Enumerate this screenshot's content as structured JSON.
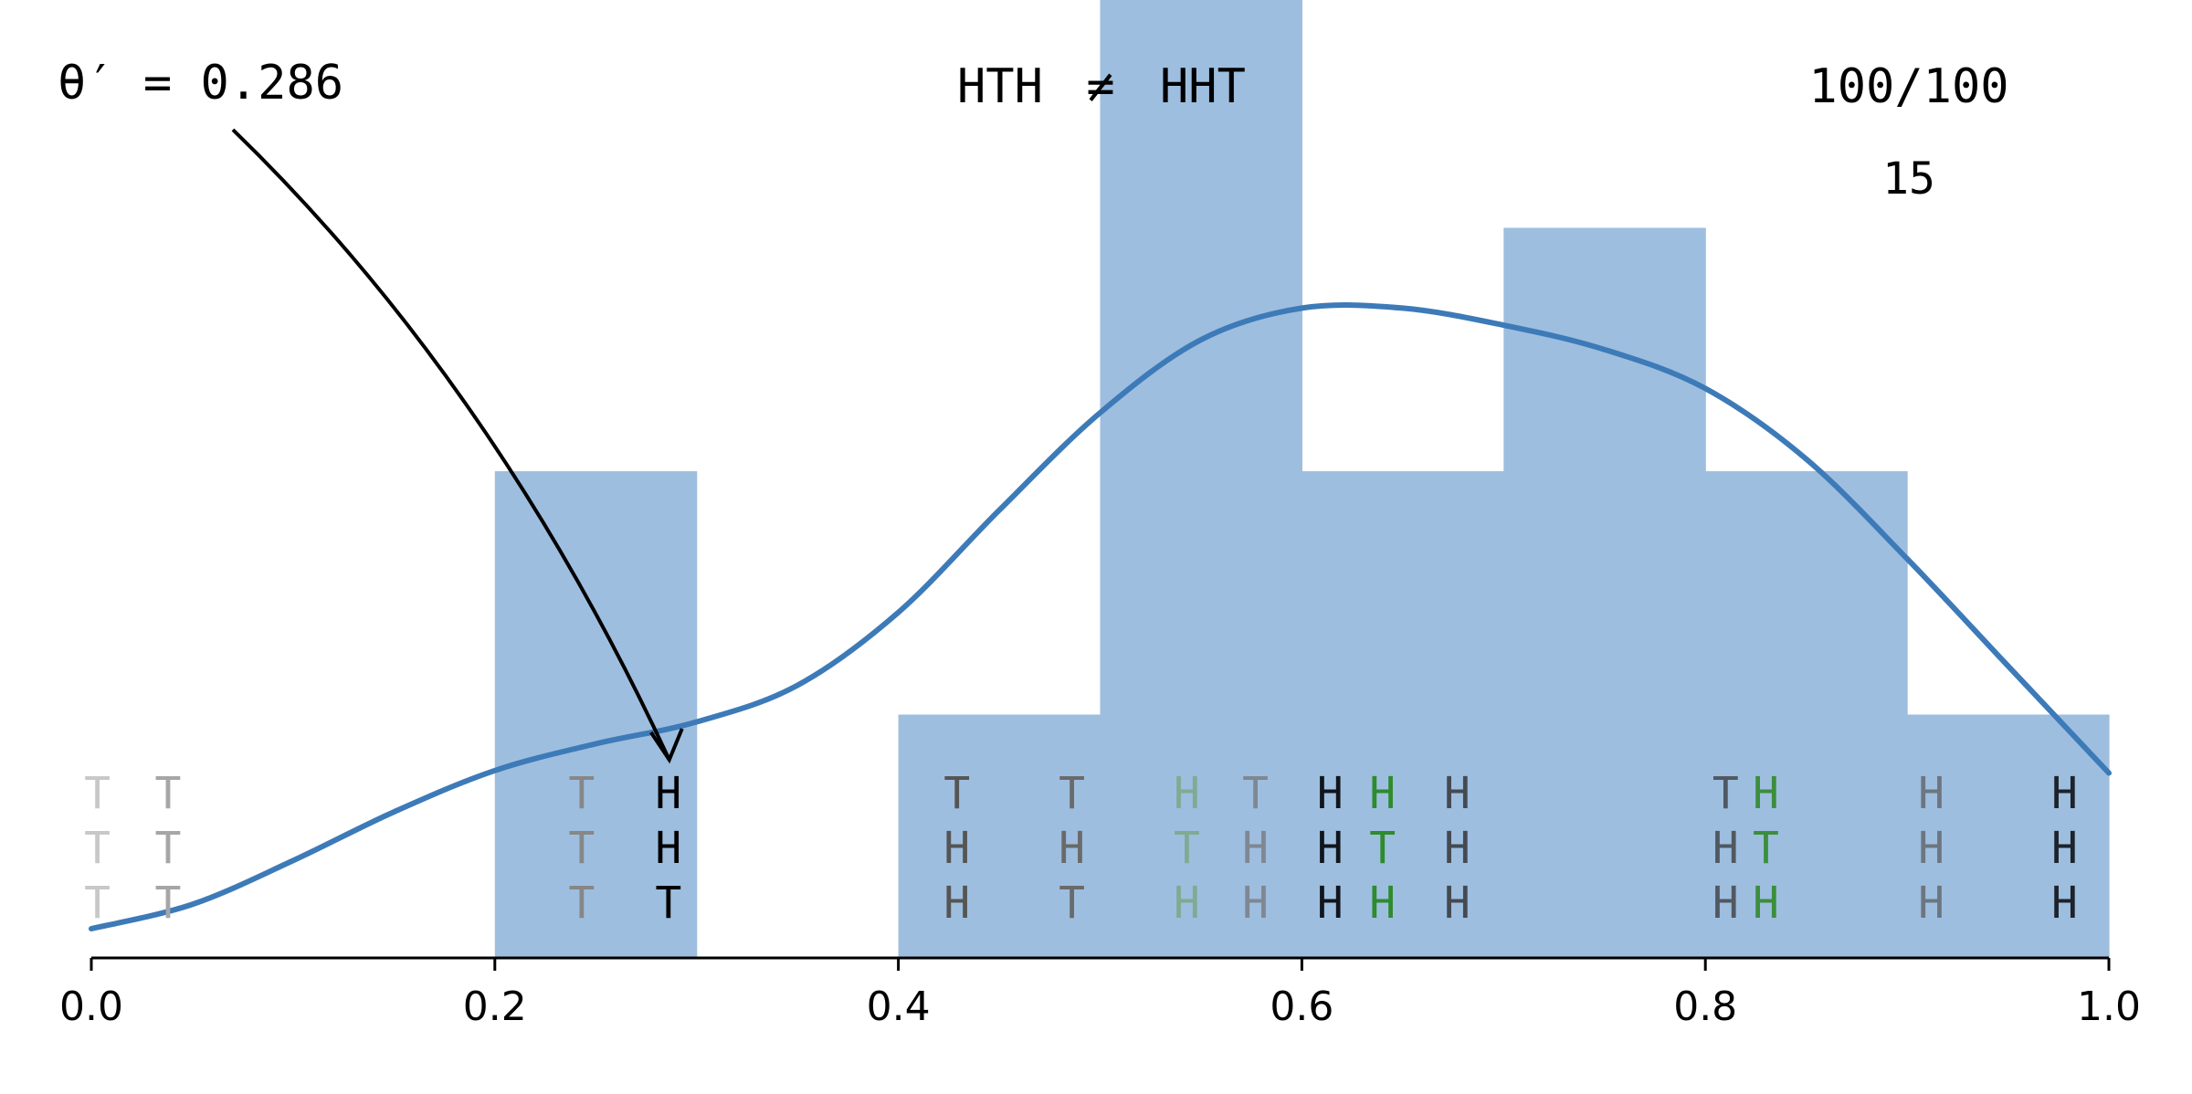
{
  "annotation": {
    "label": "θ′ = 0.286",
    "value": 0.286
  },
  "header": {
    "sequence_a": "HTH",
    "relation": "≠",
    "sequence_b": "HHT",
    "progress": "100/100",
    "count": "15"
  },
  "colors": {
    "bar": "#9ebedf",
    "curve": "#3d7ab8",
    "ink": "#000000",
    "highlight": "#2e8b2e"
  },
  "chart_data": {
    "type": "bar",
    "xlim": [
      0.0,
      1.0
    ],
    "x_ticks": [
      0.0,
      0.2,
      0.4,
      0.6,
      0.8,
      1.0
    ],
    "x_tick_labels": [
      "0.0",
      "0.2",
      "0.4",
      "0.6",
      "0.8",
      "1.0"
    ],
    "histogram": {
      "bin_edges": [
        0.0,
        0.1,
        0.2,
        0.3,
        0.4,
        0.5,
        0.6,
        0.7,
        0.8,
        0.9,
        1.0
      ],
      "counts": [
        0,
        0,
        2,
        0,
        1,
        4,
        2,
        3,
        2,
        1
      ]
    },
    "density_curve": {
      "x": [
        0.0,
        0.05,
        0.1,
        0.15,
        0.2,
        0.25,
        0.3,
        0.35,
        0.4,
        0.45,
        0.5,
        0.55,
        0.6,
        0.65,
        0.7,
        0.75,
        0.8,
        0.85,
        0.9,
        0.95,
        1.0
      ],
      "y": [
        0.12,
        0.22,
        0.4,
        0.6,
        0.77,
        0.88,
        0.97,
        1.12,
        1.42,
        1.84,
        2.24,
        2.54,
        2.67,
        2.67,
        2.6,
        2.5,
        2.34,
        2.05,
        1.64,
        1.2,
        0.76
      ]
    },
    "sequences": [
      {
        "theta": 0.003,
        "letters": [
          "T",
          "T",
          "T"
        ],
        "colors": [
          "#c8c8c8",
          "#c8c8c8",
          "#c8c8c8"
        ]
      },
      {
        "theta": 0.038,
        "letters": [
          "T",
          "T",
          "T"
        ],
        "colors": [
          "#a6a6a6",
          "#a6a6a6",
          "#a6a6a6"
        ]
      },
      {
        "theta": 0.243,
        "letters": [
          "T",
          "T",
          "T"
        ],
        "colors": [
          "#878787",
          "#878787",
          "#878787"
        ]
      },
      {
        "theta": 0.286,
        "letters": [
          "H",
          "H",
          "T"
        ],
        "colors": [
          "#000000",
          "#000000",
          "#000000"
        ]
      },
      {
        "theta": 0.429,
        "letters": [
          "T",
          "H",
          "H"
        ],
        "colors": [
          "#555555",
          "#555555",
          "#555555"
        ]
      },
      {
        "theta": 0.486,
        "letters": [
          "T",
          "H",
          "T"
        ],
        "colors": [
          "#6a6a6a",
          "#6a6a6a",
          "#6a6a6a"
        ]
      },
      {
        "theta": 0.543,
        "letters": [
          "H",
          "T",
          "H"
        ],
        "colors": [
          "#7fab93",
          "#7fab93",
          "#7fab93"
        ]
      },
      {
        "theta": 0.577,
        "letters": [
          "T",
          "H",
          "H"
        ],
        "colors": [
          "#7f8791",
          "#7f8791",
          "#7f8791"
        ]
      },
      {
        "theta": 0.614,
        "letters": [
          "H",
          "H",
          "H"
        ],
        "colors": [
          "#10151c",
          "#10151c",
          "#10151c"
        ]
      },
      {
        "theta": 0.64,
        "letters": [
          "H",
          "T",
          "H"
        ],
        "colors": [
          "#2e8b2e",
          "#2e8b2e",
          "#2e8b2e"
        ]
      },
      {
        "theta": 0.677,
        "letters": [
          "H",
          "H",
          "H"
        ],
        "colors": [
          "#444a52",
          "#444a52",
          "#444a52"
        ]
      },
      {
        "theta": 0.81,
        "letters": [
          "T",
          "H",
          "H"
        ],
        "colors": [
          "#505862",
          "#505862",
          "#505862"
        ]
      },
      {
        "theta": 0.83,
        "letters": [
          "H",
          "T",
          "H"
        ],
        "colors": [
          "#3c8e3c",
          "#3c8e3c",
          "#3c8e3c"
        ]
      },
      {
        "theta": 0.912,
        "letters": [
          "H",
          "H",
          "H"
        ],
        "colors": [
          "#6d7680",
          "#6d7680",
          "#6d7680"
        ]
      },
      {
        "theta": 0.978,
        "letters": [
          "H",
          "H",
          "H"
        ],
        "colors": [
          "#1d232b",
          "#1d232b",
          "#1d232b"
        ]
      }
    ]
  }
}
